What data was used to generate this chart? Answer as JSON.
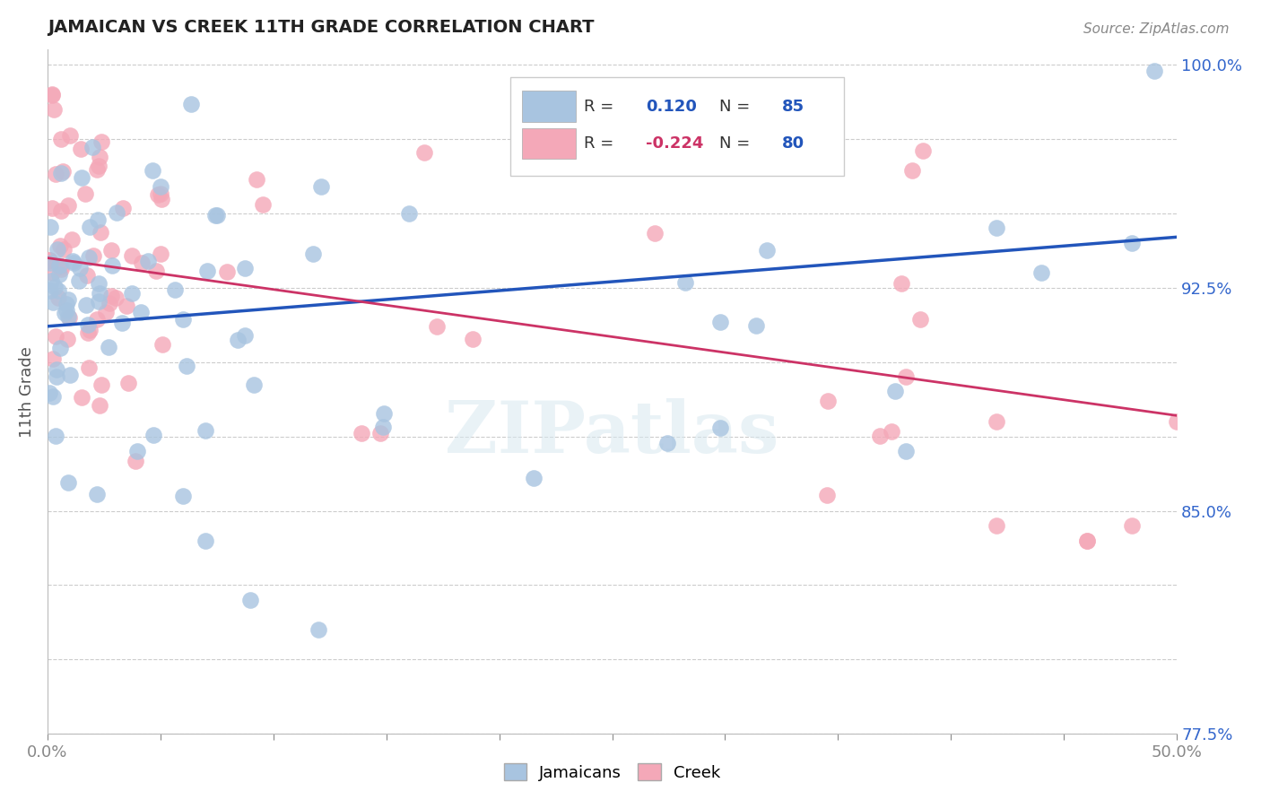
{
  "title": "JAMAICAN VS CREEK 11TH GRADE CORRELATION CHART",
  "source": "Source: ZipAtlas.com",
  "ylabel": "11th Grade",
  "xlim": [
    0.0,
    0.5
  ],
  "ylim": [
    0.775,
    1.005
  ],
  "xticks": [
    0.0,
    0.05,
    0.1,
    0.15,
    0.2,
    0.25,
    0.3,
    0.35,
    0.4,
    0.45,
    0.5
  ],
  "xticklabels": [
    "0.0%",
    "",
    "",
    "",
    "",
    "",
    "",
    "",
    "",
    "",
    "50.0%"
  ],
  "yticks": [
    0.775,
    0.8,
    0.825,
    0.85,
    0.875,
    0.9,
    0.925,
    0.95,
    0.975,
    1.0
  ],
  "yticklabels": [
    "77.5%",
    "",
    "",
    "85.0%",
    "",
    "",
    "92.5%",
    "",
    "",
    "100.0%"
  ],
  "R_jamaican": 0.12,
  "N_jamaican": 85,
  "R_creek": -0.224,
  "N_creek": 80,
  "color_jamaican": "#a8c4e0",
  "color_creek": "#f4a8b8",
  "line_color_jamaican": "#2255bb",
  "line_color_creek": "#cc3366",
  "watermark": "ZIPatlas",
  "legend_jamaican": "Jamaicans",
  "legend_creek": "Creek",
  "j_line_x0": 0.0,
  "j_line_y0": 0.912,
  "j_line_x1": 0.5,
  "j_line_y1": 0.942,
  "c_line_x0": 0.0,
  "c_line_y0": 0.935,
  "c_line_x1": 0.5,
  "c_line_y1": 0.882
}
